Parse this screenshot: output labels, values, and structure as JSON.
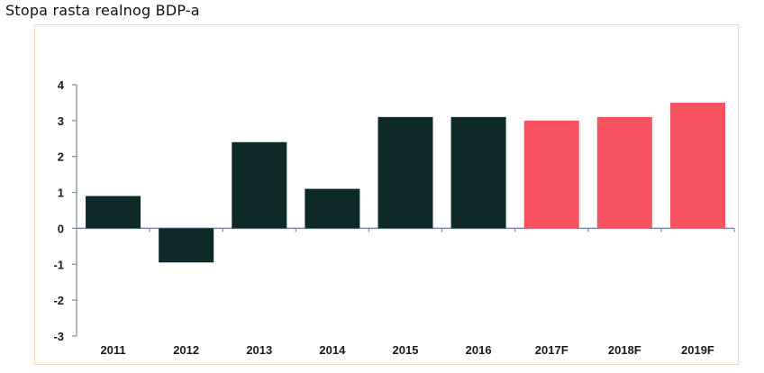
{
  "chart_data": {
    "type": "bar",
    "title": "Stopa rasta realnog BDP-a",
    "categories": [
      "2011",
      "2012",
      "2013",
      "2014",
      "2015",
      "2016",
      "2017F",
      "2018F",
      "2019F"
    ],
    "values": [
      0.9,
      -0.95,
      2.4,
      1.1,
      3.1,
      3.1,
      3.0,
      3.1,
      3.5
    ],
    "colors": [
      "#0e2a28",
      "#0e2a28",
      "#0e2a28",
      "#0e2a28",
      "#0e2a28",
      "#0e2a28",
      "#f7525f",
      "#f7525f",
      "#f7525f"
    ],
    "ylim": [
      -3,
      4
    ],
    "yticks": [
      "-3",
      "-2",
      "-1",
      "0",
      "1",
      "2",
      "3",
      "4"
    ],
    "xlabel": "",
    "ylabel": "",
    "grid": false,
    "legend": "none"
  }
}
